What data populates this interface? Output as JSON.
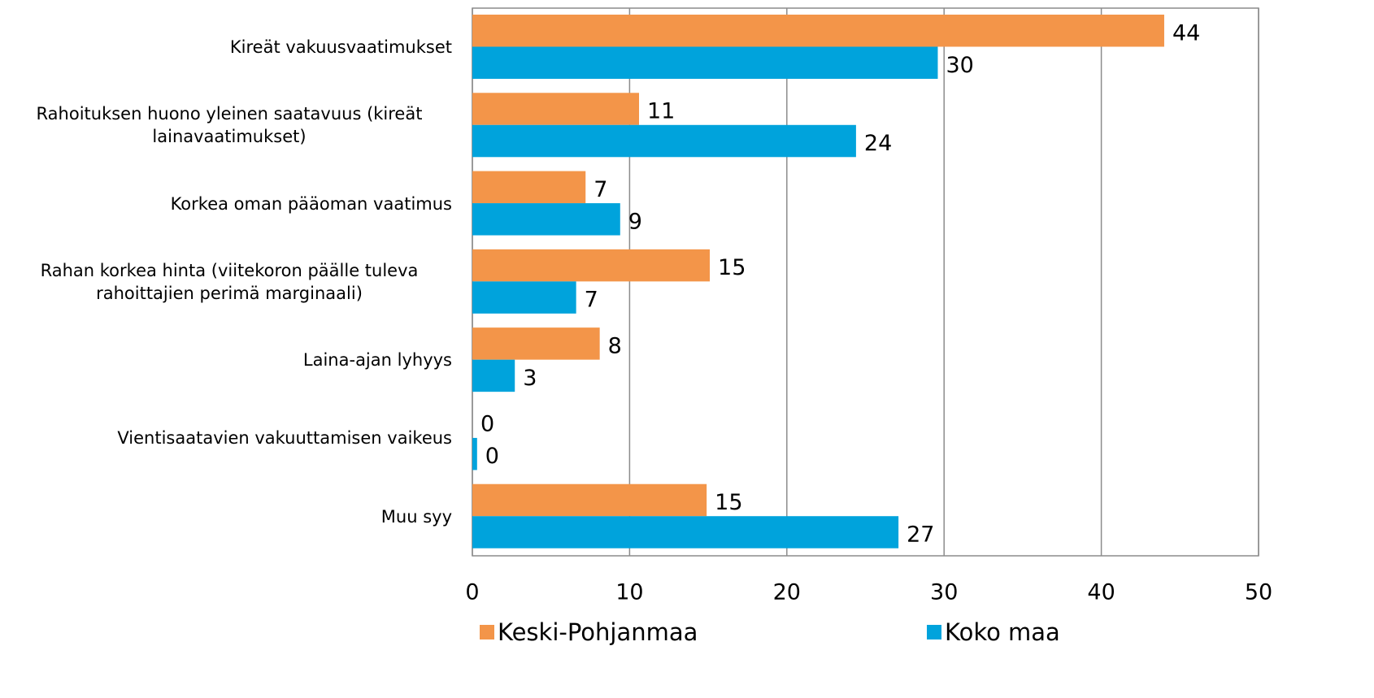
{
  "chart_data": {
    "type": "hbar",
    "categories": [
      "Kireät vakuusvaatimukset",
      "Rahoituksen huono yleinen saatavuus (kireät lainavaatimukset)",
      "Korkea oman pääoman vaatimus",
      "Rahan korkea hinta (viitekoron päälle tuleva rahoittajien perimä marginaali)",
      "Laina-ajan lyhyys",
      "Vientisaatavien vakuuttamisen vaikeus",
      "Muu syy"
    ],
    "series": [
      {
        "name": "Keski-Pohjanmaa",
        "color": "#f39549",
        "values": [
          44,
          10.6,
          7.2,
          15.1,
          8.1,
          0,
          14.9
        ],
        "value_labels": [
          "44",
          "11",
          "7",
          "15",
          "8",
          "0",
          "15"
        ]
      },
      {
        "name": "Koko maa",
        "color": "#00a3dc",
        "values": [
          29.6,
          24.4,
          9.4,
          6.6,
          2.7,
          0.3,
          27.1
        ],
        "value_labels": [
          "30",
          "24",
          "9",
          "7",
          "3",
          "0",
          "27"
        ]
      }
    ],
    "xlim": [
      0,
      50
    ],
    "xticks": [
      0,
      10,
      20,
      30,
      40,
      50
    ],
    "grid": true
  }
}
